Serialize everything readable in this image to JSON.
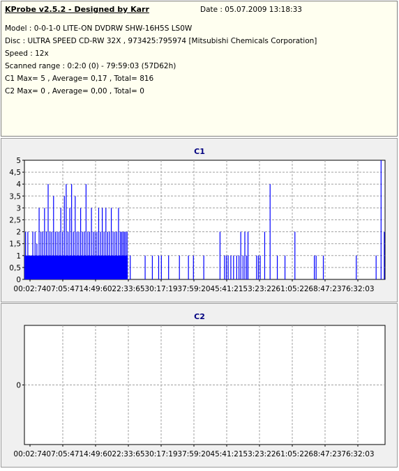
{
  "header": {
    "app_title": "KProbe v2.5.2 - Designed by Karr",
    "date_line": "Date : 05.07.2009 13:18:33"
  },
  "info": {
    "model": "Model : 0-0-1-0 LITE-ON DVDRW SHW-16H5S  LS0W",
    "disc": "Disc : ULTRA SPEED CD-RW 32X , 973425:795974 [Mitsubishi Chemicals Corporation]",
    "speed": "Speed : 12x",
    "scanned_range": "Scanned range : 0:2:0 (0) - 79:59:03 (57D62h)",
    "c1_summary": "C1 Max= 5 , Average= 0,17 , Total= 816",
    "c2_summary": "C2 Max= 0 , Average= 0,00 , Total= 0"
  },
  "colors": {
    "info_background": "#fffff0",
    "panel_background": "#f0f0f0",
    "plot_background": "#ffffff",
    "series": "#0000ff",
    "chart_title": "#000080",
    "grid": "#a0a0a0"
  },
  "chart_data": [
    {
      "type": "bar",
      "title": "C1",
      "x_tick_labels": [
        "00:02:74",
        "07:05:47",
        "14:49:60",
        "22:33:65",
        "30:17:19",
        "37:59:20",
        "45:41:21",
        "53:23:22",
        "61:05:22",
        "68:47:23",
        "76:32:03"
      ],
      "x_unit": "minutes",
      "xlim": [
        0.04,
        79.98
      ],
      "ylim": [
        0,
        5
      ],
      "y_ticks": [
        "0",
        "0,5",
        "1",
        "1,5",
        "2",
        "2,5",
        "3",
        "3,5",
        "4",
        "4,5",
        "5"
      ],
      "grid": true,
      "dense_region": {
        "x_range": [
          0.04,
          22.95
        ],
        "value": 1,
        "description": "continuous C1 = 1 errors"
      },
      "points": [
        {
          "x": 0.3,
          "y": 2
        },
        {
          "x": 0.8,
          "y": 2
        },
        {
          "x": 1.3,
          "y": 1
        },
        {
          "x": 1.9,
          "y": 2
        },
        {
          "x": 2.4,
          "y": 2
        },
        {
          "x": 2.8,
          "y": 1.5
        },
        {
          "x": 3.3,
          "y": 3
        },
        {
          "x": 3.7,
          "y": 2
        },
        {
          "x": 4.1,
          "y": 2
        },
        {
          "x": 4.5,
          "y": 3
        },
        {
          "x": 4.9,
          "y": 2
        },
        {
          "x": 5.3,
          "y": 4
        },
        {
          "x": 5.7,
          "y": 2
        },
        {
          "x": 6.1,
          "y": 2
        },
        {
          "x": 6.5,
          "y": 3.5
        },
        {
          "x": 6.9,
          "y": 2
        },
        {
          "x": 7.3,
          "y": 2
        },
        {
          "x": 7.7,
          "y": 2
        },
        {
          "x": 8.1,
          "y": 3
        },
        {
          "x": 8.5,
          "y": 2
        },
        {
          "x": 8.9,
          "y": 3.5
        },
        {
          "x": 9.3,
          "y": 4
        },
        {
          "x": 9.7,
          "y": 2
        },
        {
          "x": 10.1,
          "y": 3
        },
        {
          "x": 10.5,
          "y": 4
        },
        {
          "x": 10.9,
          "y": 2
        },
        {
          "x": 11.3,
          "y": 3.5
        },
        {
          "x": 11.7,
          "y": 2
        },
        {
          "x": 12.1,
          "y": 2
        },
        {
          "x": 12.5,
          "y": 3
        },
        {
          "x": 12.9,
          "y": 2
        },
        {
          "x": 13.3,
          "y": 2
        },
        {
          "x": 13.7,
          "y": 4
        },
        {
          "x": 14.1,
          "y": 2
        },
        {
          "x": 14.5,
          "y": 2
        },
        {
          "x": 14.9,
          "y": 3
        },
        {
          "x": 15.3,
          "y": 2
        },
        {
          "x": 15.7,
          "y": 2
        },
        {
          "x": 16.1,
          "y": 2
        },
        {
          "x": 16.5,
          "y": 3
        },
        {
          "x": 16.9,
          "y": 2
        },
        {
          "x": 17.3,
          "y": 3
        },
        {
          "x": 17.7,
          "y": 2
        },
        {
          "x": 18.1,
          "y": 3
        },
        {
          "x": 18.5,
          "y": 2
        },
        {
          "x": 18.9,
          "y": 2
        },
        {
          "x": 19.3,
          "y": 3
        },
        {
          "x": 19.7,
          "y": 2
        },
        {
          "x": 20.1,
          "y": 2
        },
        {
          "x": 20.5,
          "y": 2
        },
        {
          "x": 20.9,
          "y": 3
        },
        {
          "x": 21.3,
          "y": 2
        },
        {
          "x": 21.6,
          "y": 2
        },
        {
          "x": 21.9,
          "y": 2
        },
        {
          "x": 22.2,
          "y": 2
        },
        {
          "x": 22.5,
          "y": 2
        },
        {
          "x": 22.8,
          "y": 2
        },
        {
          "x": 23.5,
          "y": 1
        },
        {
          "x": 26.8,
          "y": 1
        },
        {
          "x": 28.4,
          "y": 1
        },
        {
          "x": 29.8,
          "y": 1
        },
        {
          "x": 30.4,
          "y": 1
        },
        {
          "x": 32.0,
          "y": 1
        },
        {
          "x": 34.4,
          "y": 1
        },
        {
          "x": 36.4,
          "y": 1
        },
        {
          "x": 37.5,
          "y": 1
        },
        {
          "x": 39.8,
          "y": 1
        },
        {
          "x": 43.4,
          "y": 2
        },
        {
          "x": 44.4,
          "y": 1
        },
        {
          "x": 44.8,
          "y": 1
        },
        {
          "x": 45.2,
          "y": 1
        },
        {
          "x": 45.8,
          "y": 1
        },
        {
          "x": 46.4,
          "y": 1
        },
        {
          "x": 47.1,
          "y": 1
        },
        {
          "x": 47.6,
          "y": 1
        },
        {
          "x": 48.0,
          "y": 2
        },
        {
          "x": 48.5,
          "y": 1
        },
        {
          "x": 48.9,
          "y": 2
        },
        {
          "x": 49.3,
          "y": 1
        },
        {
          "x": 49.6,
          "y": 2
        },
        {
          "x": 51.5,
          "y": 1
        },
        {
          "x": 51.9,
          "y": 1
        },
        {
          "x": 52.3,
          "y": 1
        },
        {
          "x": 53.3,
          "y": 2
        },
        {
          "x": 54.5,
          "y": 4
        },
        {
          "x": 56.1,
          "y": 1
        },
        {
          "x": 57.8,
          "y": 1
        },
        {
          "x": 60.0,
          "y": 2
        },
        {
          "x": 64.3,
          "y": 1
        },
        {
          "x": 64.7,
          "y": 1
        },
        {
          "x": 66.3,
          "y": 1
        },
        {
          "x": 73.6,
          "y": 1
        },
        {
          "x": 78.0,
          "y": 1
        },
        {
          "x": 79.1,
          "y": 5
        },
        {
          "x": 79.8,
          "y": 2
        }
      ]
    },
    {
      "type": "bar",
      "title": "C2",
      "x_tick_labels": [
        "00:02:74",
        "07:05:47",
        "14:49:60",
        "22:33:65",
        "30:17:19",
        "37:59:20",
        "45:41:21",
        "53:23:22",
        "61:05:22",
        "68:47:23",
        "76:32:03"
      ],
      "y_ticks": [
        "0"
      ],
      "ylim": [
        -1,
        1
      ],
      "grid": true,
      "points": []
    }
  ]
}
